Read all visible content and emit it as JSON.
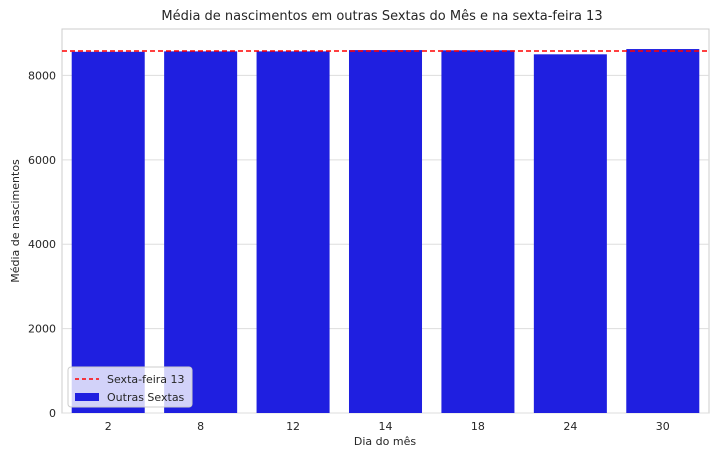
{
  "chart_data": {
    "type": "bar",
    "title": "Média de nascimentos em outras Sextas do Mês e na sexta-feira 13",
    "xlabel": "Dia do mês",
    "ylabel": "Média de nascimentos",
    "categories": [
      "2",
      "8",
      "12",
      "14",
      "18",
      "24",
      "30"
    ],
    "series": [
      {
        "name": "Outras Sextas",
        "color": "#1f1fe0",
        "values": [
          8560,
          8570,
          8570,
          8600,
          8595,
          8500,
          8625
        ]
      }
    ],
    "reference_line": {
      "name": "Sexta-feira 13",
      "value": 8580,
      "color": "#ff0000",
      "style": "dashed"
    },
    "ylim": [
      0,
      9100
    ],
    "yticks": [
      0,
      2000,
      4000,
      6000,
      8000
    ],
    "grid": true,
    "legend_position": "bottom-left"
  }
}
